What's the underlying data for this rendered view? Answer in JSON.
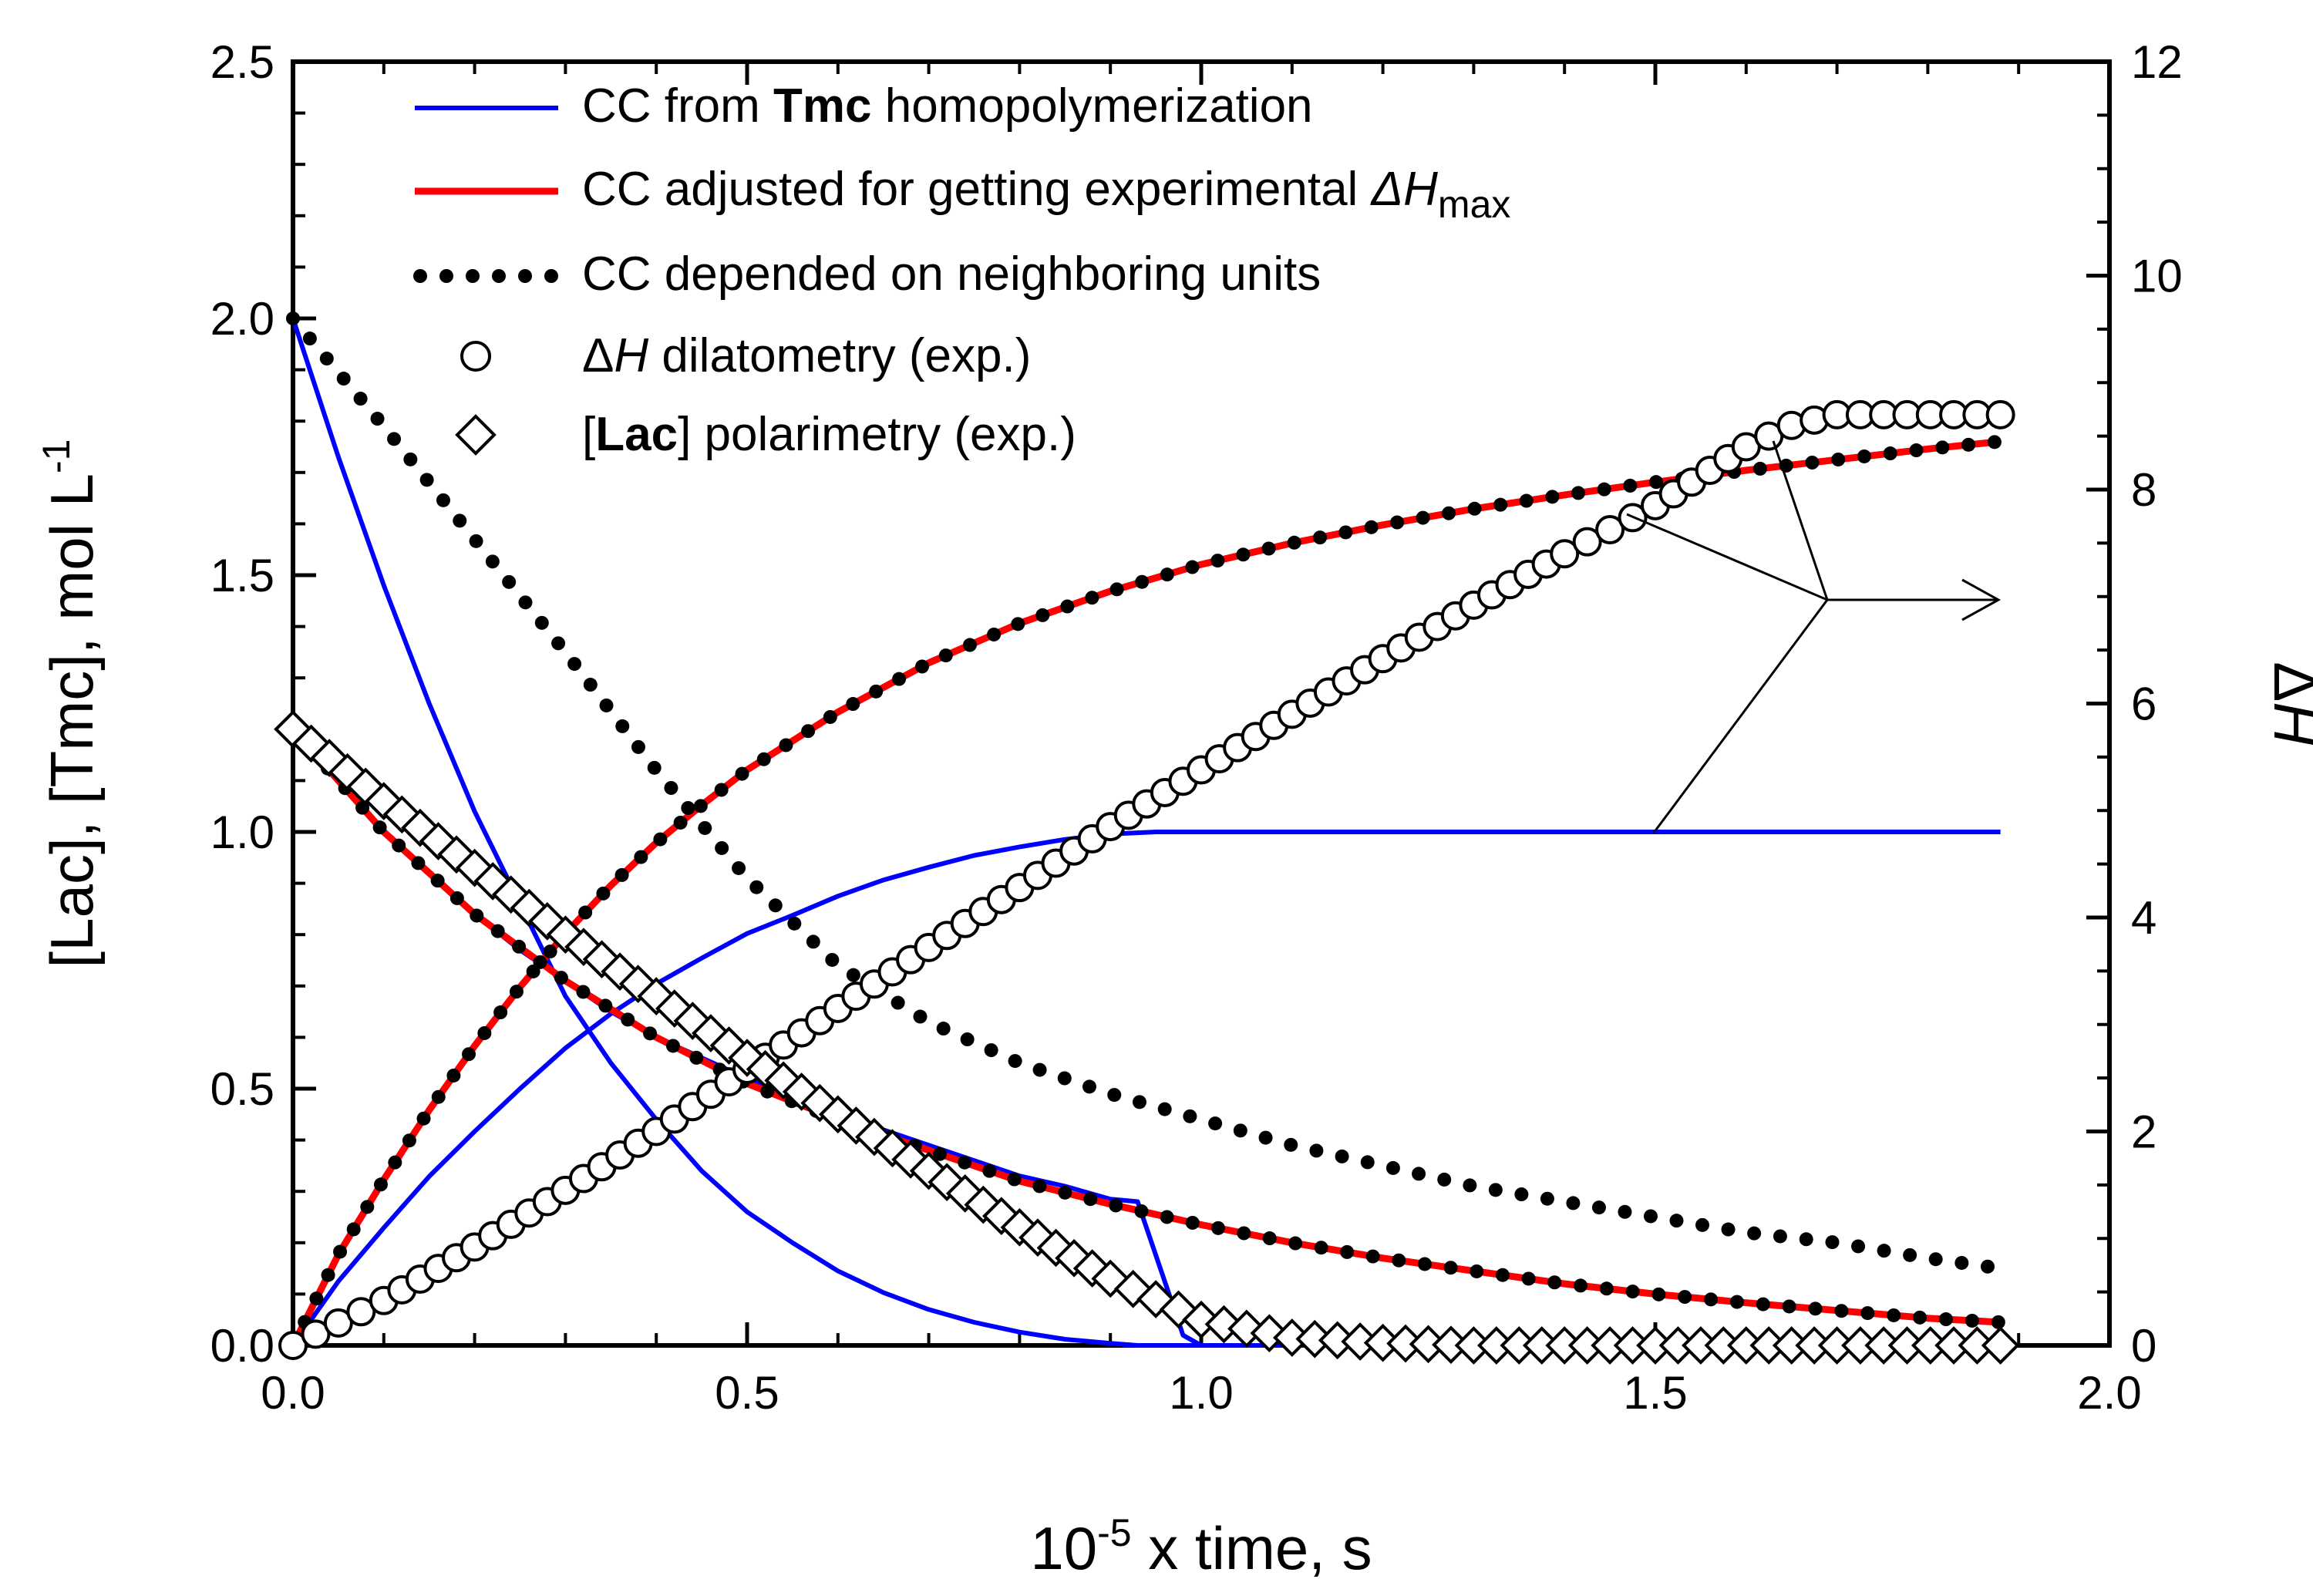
{
  "chart_data": {
    "type": "line",
    "x_axis": {
      "label_prefix": "10",
      "label_exponent": "-5",
      "label_suffix": " x time, s",
      "range": [
        0,
        2.0
      ],
      "ticks": [
        "0.0",
        "0.5",
        "1.0",
        "1.5",
        "2.0"
      ]
    },
    "y_left": {
      "label": "[Lac], [Tmc], mol L",
      "label_exponent": "-1",
      "range": [
        0,
        2.5
      ],
      "ticks": [
        "0.0",
        "0.5",
        "1.0",
        "1.5",
        "2.0",
        "2.5"
      ]
    },
    "y_right": {
      "label_delta": "Δ",
      "label_var": "H",
      "range": [
        0,
        12
      ],
      "ticks": [
        "0",
        "2",
        "4",
        "6",
        "8",
        "10",
        "12"
      ]
    },
    "legend": [
      {
        "parts": [
          {
            "t": "CC from ",
            "w": "normal"
          },
          {
            "t": "Tmc",
            "w": "bold"
          },
          {
            "t": " homopolymerization",
            "w": "normal"
          }
        ],
        "marker": "line",
        "color": "#0000ff"
      },
      {
        "parts": [
          {
            "t": "CC adjusted for getting experimental ",
            "w": "normal"
          },
          {
            "t": "ΔH",
            "w": "italic"
          }
        ],
        "sub": "max",
        "marker": "line",
        "color": "#ff0000"
      },
      {
        "parts": [
          {
            "t": "CC depended on neighboring units",
            "w": "normal"
          }
        ],
        "marker": "dots",
        "color": "#000000"
      },
      {
        "parts": [
          {
            "t": "Δ",
            "w": "normal"
          },
          {
            "t": "H",
            "w": "italic"
          },
          {
            "t": " dilatometry (exp.)",
            "w": "normal"
          }
        ],
        "marker": "circle",
        "color": "#000000"
      },
      {
        "parts": [
          {
            "t": "[",
            "w": "normal"
          },
          {
            "t": "Lac",
            "w": "bold"
          },
          {
            "t": "] polarimetry (exp.)",
            "w": "normal"
          }
        ],
        "marker": "diamond",
        "color": "#000000"
      }
    ],
    "series": [
      {
        "name": "Tmc homopolymerization - Tmc concentration",
        "style": "line",
        "color": "#0000ff",
        "axis": "left",
        "x": [
          0,
          0.05,
          0.1,
          0.15,
          0.2,
          0.25,
          0.3,
          0.35,
          0.4,
          0.45,
          0.5,
          0.55,
          0.6,
          0.65,
          0.7,
          0.75,
          0.8,
          0.85,
          0.9,
          0.93,
          0.98,
          1.0,
          1.5,
          1.88
        ],
        "y": [
          2.0,
          1.73,
          1.48,
          1.25,
          1.04,
          0.86,
          0.68,
          0.55,
          0.44,
          0.34,
          0.26,
          0.2,
          0.145,
          0.103,
          0.07,
          0.045,
          0.026,
          0.012,
          0.004,
          0.0,
          0.0,
          0.0,
          0.0,
          0.0
        ]
      },
      {
        "name": "Tmc homopolymerization - Lac concentration",
        "style": "line",
        "color": "#0000ff",
        "axis": "left",
        "x": [
          0,
          0.05,
          0.1,
          0.15,
          0.2,
          0.25,
          0.3,
          0.35,
          0.4,
          0.45,
          0.5,
          0.55,
          0.6,
          0.65,
          0.7,
          0.75,
          0.8,
          0.85,
          0.9,
          0.93,
          0.98,
          1.0,
          1.5,
          1.88
        ],
        "y": [
          1.2,
          1.1,
          1.0,
          0.92,
          0.84,
          0.77,
          0.71,
          0.65,
          0.6,
          0.56,
          0.52,
          0.48,
          0.45,
          0.42,
          0.39,
          0.36,
          0.33,
          0.31,
          0.285,
          0.28,
          0.02,
          0.0,
          0.0,
          0.0
        ]
      },
      {
        "name": "Tmc homopolymerization - ΔH",
        "style": "line",
        "color": "#0000ff",
        "axis": "right",
        "x": [
          0,
          0.05,
          0.1,
          0.15,
          0.2,
          0.25,
          0.3,
          0.35,
          0.4,
          0.45,
          0.5,
          0.55,
          0.6,
          0.65,
          0.7,
          0.75,
          0.8,
          0.85,
          0.9,
          0.95,
          1.0,
          1.5,
          1.88
        ],
        "y": [
          0,
          0.6,
          1.1,
          1.58,
          2.0,
          2.4,
          2.78,
          3.1,
          3.38,
          3.62,
          3.85,
          4.02,
          4.2,
          4.35,
          4.47,
          4.58,
          4.66,
          4.73,
          4.78,
          4.8,
          4.8,
          4.8,
          4.8
        ]
      },
      {
        "name": "CC adjusted - Lac concentration",
        "style": "line",
        "color": "#ff0000",
        "axis": "left",
        "x": [
          0,
          0.1,
          0.2,
          0.3,
          0.4,
          0.5,
          0.6,
          0.7,
          0.8,
          0.9,
          1.0,
          1.1,
          1.2,
          1.3,
          1.4,
          1.5,
          1.6,
          1.7,
          1.8,
          1.88
        ],
        "y": [
          1.2,
          1.0,
          0.84,
          0.71,
          0.6,
          0.51,
          0.44,
          0.38,
          0.32,
          0.275,
          0.235,
          0.2,
          0.17,
          0.145,
          0.12,
          0.1,
          0.083,
          0.068,
          0.053,
          0.045
        ]
      },
      {
        "name": "CC adjusted - ΔH",
        "style": "line",
        "color": "#ff0000",
        "axis": "right",
        "x": [
          0,
          0.05,
          0.1,
          0.15,
          0.2,
          0.25,
          0.3,
          0.35,
          0.4,
          0.45,
          0.5,
          0.6,
          0.7,
          0.8,
          0.9,
          1.0,
          1.1,
          1.2,
          1.3,
          1.4,
          1.5,
          1.6,
          1.7,
          1.8,
          1.88
        ],
        "y": [
          0,
          0.85,
          1.55,
          2.2,
          2.8,
          3.35,
          3.85,
          4.3,
          4.7,
          5.05,
          5.38,
          5.92,
          6.38,
          6.75,
          7.05,
          7.3,
          7.5,
          7.67,
          7.82,
          7.95,
          8.07,
          8.18,
          8.28,
          8.38,
          8.45
        ]
      },
      {
        "name": "CC neighboring units - Tmc concentration",
        "style": "dots",
        "color": "#000000",
        "axis": "left",
        "x": [
          0,
          0.1,
          0.2,
          0.3,
          0.4,
          0.5,
          0.6,
          0.7,
          0.8,
          0.9,
          1.0,
          1.1,
          1.2,
          1.3,
          1.4,
          1.5,
          1.6,
          1.7,
          1.8,
          1.88
        ],
        "y": [
          2.0,
          1.79,
          1.57,
          1.35,
          1.12,
          0.91,
          0.74,
          0.63,
          0.55,
          0.49,
          0.44,
          0.39,
          0.35,
          0.31,
          0.28,
          0.25,
          0.22,
          0.2,
          0.17,
          0.15
        ]
      },
      {
        "name": "CC neighboring units - Lac concentration",
        "style": "dots",
        "color": "#000000",
        "axis": "left",
        "x": [
          0,
          0.1,
          0.2,
          0.3,
          0.4,
          0.5,
          0.6,
          0.7,
          0.8,
          0.9,
          1.0,
          1.1,
          1.2,
          1.3,
          1.4,
          1.5,
          1.6,
          1.7,
          1.8,
          1.88
        ],
        "y": [
          1.2,
          1.0,
          0.84,
          0.71,
          0.6,
          0.51,
          0.44,
          0.38,
          0.32,
          0.275,
          0.235,
          0.2,
          0.17,
          0.145,
          0.12,
          0.1,
          0.083,
          0.068,
          0.053,
          0.045
        ]
      },
      {
        "name": "CC neighboring units - ΔH",
        "style": "dots",
        "color": "#000000",
        "axis": "right",
        "x": [
          0,
          0.05,
          0.1,
          0.15,
          0.2,
          0.25,
          0.3,
          0.35,
          0.4,
          0.45,
          0.5,
          0.6,
          0.7,
          0.8,
          0.9,
          1.0,
          1.1,
          1.2,
          1.3,
          1.4,
          1.5,
          1.6,
          1.7,
          1.8,
          1.88
        ],
        "y": [
          0,
          0.85,
          1.55,
          2.2,
          2.8,
          3.35,
          3.85,
          4.3,
          4.7,
          5.05,
          5.38,
          5.92,
          6.38,
          6.75,
          7.05,
          7.3,
          7.5,
          7.67,
          7.82,
          7.95,
          8.07,
          8.18,
          8.28,
          8.38,
          8.45
        ]
      },
      {
        "name": "ΔH dilatometry (exp.)",
        "style": "circles",
        "color": "#000000",
        "axis": "right",
        "x": [
          0,
          0.1,
          0.2,
          0.3,
          0.4,
          0.5,
          0.6,
          0.7,
          0.8,
          0.9,
          1.0,
          1.1,
          1.2,
          1.3,
          1.4,
          1.5,
          1.6,
          1.65,
          1.7,
          1.88
        ],
        "y": [
          0,
          0.42,
          0.92,
          1.45,
          2.0,
          2.58,
          3.15,
          3.72,
          4.28,
          4.85,
          5.38,
          5.9,
          6.42,
          6.92,
          7.4,
          7.85,
          8.4,
          8.6,
          8.7,
          8.7
        ]
      },
      {
        "name": "[Lac] polarimetry (exp.)",
        "style": "diamonds",
        "color": "#000000",
        "axis": "left",
        "x": [
          0,
          0.1,
          0.2,
          0.3,
          0.4,
          0.5,
          0.6,
          0.7,
          0.8,
          0.9,
          1.0,
          1.1,
          1.2,
          1.3,
          1.4,
          1.5,
          1.6,
          1.7,
          1.88
        ],
        "y": [
          1.2,
          1.06,
          0.93,
          0.8,
          0.68,
          0.56,
          0.45,
          0.34,
          0.23,
          0.13,
          0.05,
          0.015,
          0.005,
          0.0,
          0.0,
          0.0,
          0.0,
          0.0,
          0.0
        ]
      }
    ],
    "annotation": {
      "text": "",
      "points_to": "right axis",
      "style": "arrow"
    }
  }
}
